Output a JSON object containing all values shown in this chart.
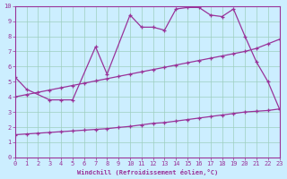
{
  "xlabel": "Windchill (Refroidissement éolien,°C)",
  "bg_color": "#cceeff",
  "grid_color": "#9ecfbf",
  "line_color": "#993399",
  "line1_x": [
    0,
    1,
    3,
    4,
    5,
    7,
    8,
    10,
    11,
    12,
    13,
    14,
    15,
    16,
    17,
    18,
    19,
    20,
    21,
    22,
    23
  ],
  "line1_y": [
    5.3,
    4.5,
    3.8,
    3.8,
    3.8,
    7.3,
    5.5,
    9.4,
    8.6,
    8.6,
    8.4,
    9.8,
    9.9,
    9.9,
    9.4,
    9.3,
    9.8,
    8.0,
    6.3,
    5.0,
    3.2
  ],
  "line2_x": [
    0,
    1,
    2,
    3,
    4,
    5,
    6,
    7,
    8,
    9,
    10,
    11,
    12,
    13,
    14,
    15,
    16,
    17,
    18,
    19,
    20,
    21,
    22,
    23
  ],
  "line2_y": [
    4.0,
    4.15,
    4.3,
    4.45,
    4.6,
    4.75,
    4.9,
    5.05,
    5.2,
    5.35,
    5.5,
    5.65,
    5.8,
    5.95,
    6.1,
    6.25,
    6.4,
    6.55,
    6.7,
    6.85,
    7.0,
    7.2,
    7.5,
    7.8
  ],
  "line3_x": [
    0,
    1,
    2,
    3,
    4,
    5,
    6,
    7,
    8,
    9,
    10,
    11,
    12,
    13,
    14,
    15,
    16,
    17,
    18,
    19,
    20,
    21,
    22,
    23
  ],
  "line3_y": [
    1.5,
    1.55,
    1.6,
    1.65,
    1.7,
    1.75,
    1.8,
    1.85,
    1.9,
    1.98,
    2.05,
    2.15,
    2.25,
    2.3,
    2.4,
    2.5,
    2.6,
    2.7,
    2.8,
    2.9,
    3.0,
    3.05,
    3.1,
    3.2
  ],
  "xmin": 0,
  "xmax": 23,
  "ymin": 0,
  "ymax": 10,
  "xticks": [
    0,
    1,
    2,
    3,
    4,
    5,
    6,
    7,
    8,
    9,
    10,
    11,
    12,
    13,
    14,
    15,
    16,
    17,
    18,
    19,
    20,
    21,
    22,
    23
  ],
  "yticks": [
    0,
    1,
    2,
    3,
    4,
    5,
    6,
    7,
    8,
    9,
    10
  ]
}
